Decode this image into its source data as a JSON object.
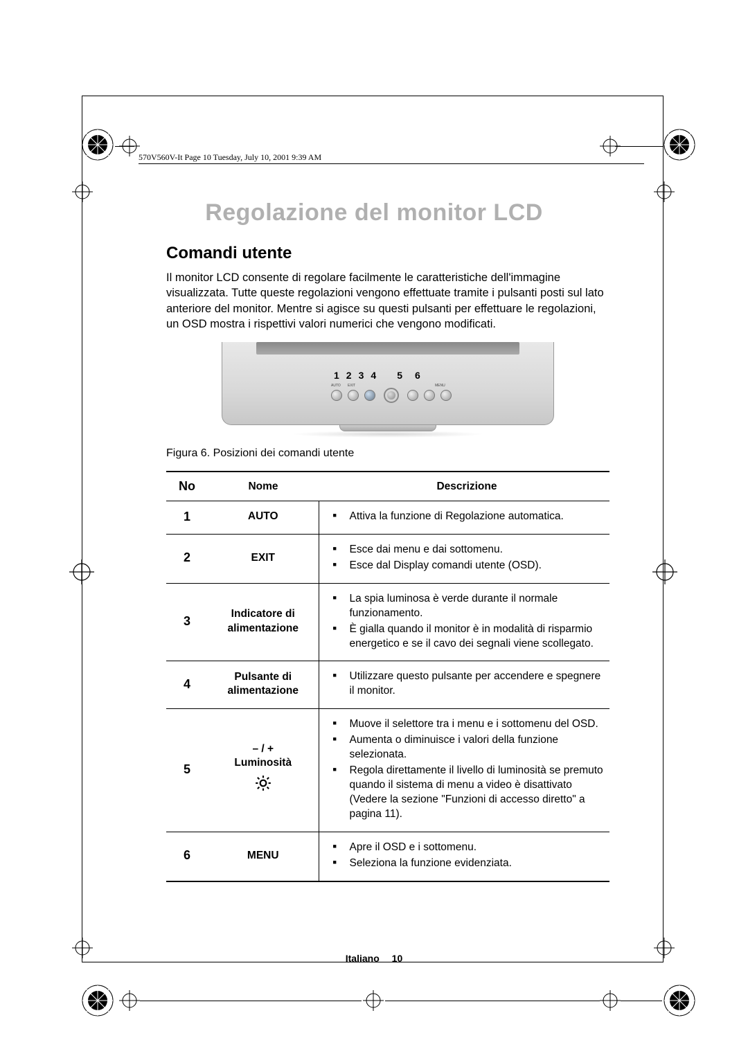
{
  "header_text": "570V560V-It  Page 10  Tuesday, July 10, 2001  9:39 AM",
  "title": "Regolazione del monitor LCD",
  "title_color": "#b0b0b0",
  "section_title": "Comandi utente",
  "intro": "Il monitor LCD consente di regolare facilmente le caratteristiche dell'immagine visualizzata. Tutte queste regolazioni vengono effettuate tramite i pulsanti posti sul lato anteriore del monitor. Mentre si agisce su questi pulsanti per effettuare le regolazioni, un OSD mostra i rispettivi valori numerici che vengono modificati.",
  "figure": {
    "numbers": [
      "1",
      "2",
      "3",
      "4",
      "5",
      "6"
    ],
    "button_labels": {
      "auto": "AUTO",
      "exit": "EXIT",
      "menu": "MENU"
    },
    "caption": "Figura 6.  Posizioni dei comandi utente"
  },
  "table": {
    "headers": {
      "no": "No",
      "name": "Nome",
      "desc": "Descrizione"
    },
    "rows": [
      {
        "no": "1",
        "name_lines": [
          "AUTO"
        ],
        "symbol": null,
        "desc": [
          "Attiva la funzione di Regolazione automatica."
        ]
      },
      {
        "no": "2",
        "name_lines": [
          "EXIT"
        ],
        "symbol": null,
        "desc": [
          "Esce dai menu e dai sottomenu.",
          "Esce dal Display comandi utente (OSD)."
        ]
      },
      {
        "no": "3",
        "name_lines": [
          "Indicatore di",
          "alimentazione"
        ],
        "symbol": null,
        "desc": [
          "La spia luminosa è verde durante il normale funzionamento.",
          "È gialla quando il monitor è in modalità di risparmio energetico e se il cavo dei segnali viene scollegato."
        ]
      },
      {
        "no": "4",
        "name_lines": [
          "Pulsante di",
          "alimentazione"
        ],
        "symbol": null,
        "desc": [
          "Utilizzare questo pulsante per accendere e spegnere il monitor."
        ]
      },
      {
        "no": "5",
        "name_lines": [
          "– / +",
          "Luminosità"
        ],
        "symbol": "brightness",
        "desc": [
          "Muove il selettore tra i menu e i sottomenu del OSD.",
          "Aumenta o diminuisce i valori della funzione selezionata.",
          "Regola direttamente il livello di luminosità se premuto quando il sistema di menu a video è disattivato (Vedere la sezione \"Funzioni di accesso diretto\" a pagina 11)."
        ]
      },
      {
        "no": "6",
        "name_lines": [
          "MENU"
        ],
        "symbol": null,
        "desc": [
          "Apre il OSD e i sottomenu.",
          "Seleziona la funzione evidenziata."
        ]
      }
    ]
  },
  "footer": {
    "lang": "Italiano",
    "page": "10"
  },
  "colors": {
    "text": "#000000",
    "background": "#ffffff",
    "monitor_body": "#d8d8d8"
  }
}
